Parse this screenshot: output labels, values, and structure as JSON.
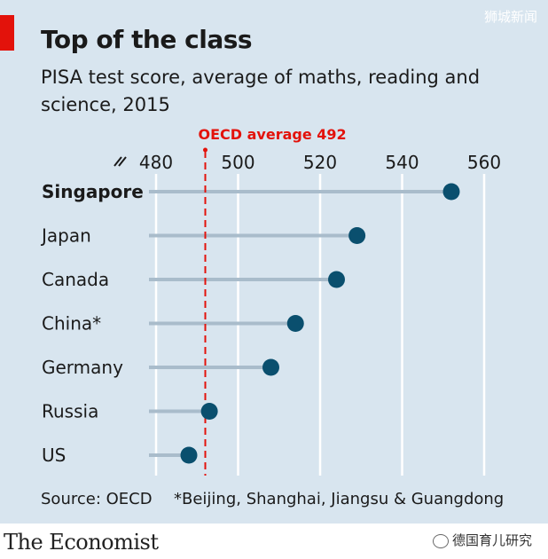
{
  "watermark_top": "狮城新闻",
  "watermark_bottom": "德国育儿研究",
  "brand": "The Economist",
  "title": "Top of the class",
  "subtitle": "PISA test score, average of maths, reading and science, 2015",
  "source": "Source: OECD",
  "footnote": "*Beijing, Shanghai, Jiangsu & Guangdong",
  "colors": {
    "background": "#d8e5ef",
    "accent": "#e3120b",
    "dot": "#0a4f6e",
    "stem": "#a9bccb"
  },
  "chart_data": {
    "type": "scatter",
    "style": "dot-plot",
    "categories": [
      "Singapore",
      "Japan",
      "Canada",
      "China*",
      "Germany",
      "Russia",
      "US"
    ],
    "values": [
      552,
      529,
      524,
      514,
      508,
      493,
      488
    ],
    "highlight": "Singapore",
    "xlim": [
      480,
      560
    ],
    "xticks": [
      480,
      500,
      520,
      540,
      560
    ],
    "axis_break": true,
    "grid": true,
    "reference_line": {
      "label": "OECD average 492",
      "value": 492
    }
  }
}
